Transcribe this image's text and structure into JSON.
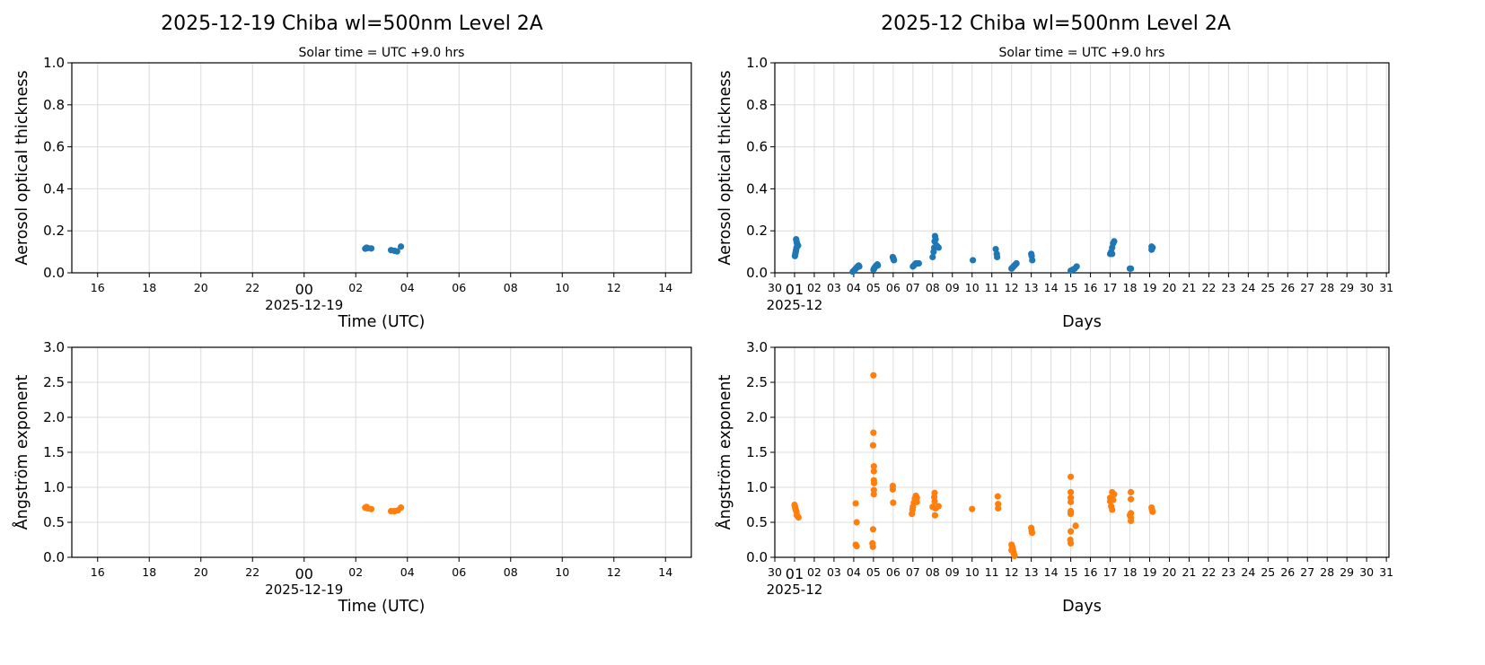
{
  "columns": [
    {
      "title": "2025-12-19  Chiba  wl=500nm  Level 2A",
      "subtitle": "Solar time = UTC +9.0 hrs"
    },
    {
      "title": "2025-12  Chiba  wl=500nm  Level 2A",
      "subtitle": "Solar time = UTC +9.0 hrs"
    }
  ],
  "chart_data": [
    {
      "type": "scatter",
      "panel": "daily-aot",
      "xlabel": "Time (UTC)",
      "ylabel": "Aerosol optical thickness",
      "xlim": [
        "2025-12-18 15:00",
        "2025-12-19 15:00"
      ],
      "ylim": [
        0,
        1
      ],
      "yticks": [
        "0.0",
        "0.2",
        "0.4",
        "0.6",
        "0.8",
        "1.0"
      ],
      "xticks": [
        {
          "at": "2025-12-18 16:00",
          "label": "16"
        },
        {
          "at": "2025-12-18 18:00",
          "label": "18"
        },
        {
          "at": "2025-12-18 20:00",
          "label": "20"
        },
        {
          "at": "2025-12-18 22:00",
          "label": "22"
        },
        {
          "at": "2025-12-19 00:00",
          "label": "00"
        },
        {
          "at": "2025-12-19 02:00",
          "label": "02"
        },
        {
          "at": "2025-12-19 04:00",
          "label": "04"
        },
        {
          "at": "2025-12-19 06:00",
          "label": "06"
        },
        {
          "at": "2025-12-19 08:00",
          "label": "08"
        },
        {
          "at": "2025-12-19 10:00",
          "label": "10"
        },
        {
          "at": "2025-12-19 12:00",
          "label": "12"
        },
        {
          "at": "2025-12-19 14:00",
          "label": "14"
        }
      ],
      "x_offset_label": "2025-12-19",
      "x_offset_at": "2025-12-19 00:00",
      "grid": true,
      "color": "#1f77b4",
      "points": [
        [
          "2025-12-19 02:22",
          0.115
        ],
        [
          "2025-12-19 02:25",
          0.12
        ],
        [
          "2025-12-19 02:28",
          0.118
        ],
        [
          "2025-12-19 02:36",
          0.116
        ],
        [
          "2025-12-19 03:22",
          0.108
        ],
        [
          "2025-12-19 03:30",
          0.105
        ],
        [
          "2025-12-19 03:36",
          0.102
        ],
        [
          "2025-12-19 03:45",
          0.125
        ]
      ]
    },
    {
      "type": "scatter",
      "panel": "monthly-aot",
      "xlabel": "Days",
      "ylabel": "Aerosol optical thickness",
      "xlim": [
        0,
        31.13
      ],
      "ylim": [
        0,
        1
      ],
      "yticks": [
        "0.0",
        "0.2",
        "0.4",
        "0.6",
        "0.8",
        "1.0"
      ],
      "xticks": [
        {
          "at": 0,
          "label": "30"
        },
        {
          "at": 1,
          "label": "01"
        },
        {
          "at": 2,
          "label": "02"
        },
        {
          "at": 3,
          "label": "03"
        },
        {
          "at": 4,
          "label": "04"
        },
        {
          "at": 5,
          "label": "05"
        },
        {
          "at": 6,
          "label": "06"
        },
        {
          "at": 7,
          "label": "07"
        },
        {
          "at": 8,
          "label": "08"
        },
        {
          "at": 9,
          "label": "09"
        },
        {
          "at": 10,
          "label": "10"
        },
        {
          "at": 11,
          "label": "11"
        },
        {
          "at": 12,
          "label": "12"
        },
        {
          "at": 13,
          "label": "13"
        },
        {
          "at": 14,
          "label": "14"
        },
        {
          "at": 15,
          "label": "15"
        },
        {
          "at": 16,
          "label": "16"
        },
        {
          "at": 17,
          "label": "17"
        },
        {
          "at": 18,
          "label": "18"
        },
        {
          "at": 19,
          "label": "19"
        },
        {
          "at": 20,
          "label": "20"
        },
        {
          "at": 21,
          "label": "21"
        },
        {
          "at": 22,
          "label": "22"
        },
        {
          "at": 23,
          "label": "23"
        },
        {
          "at": 24,
          "label": "24"
        },
        {
          "at": 25,
          "label": "25"
        },
        {
          "at": 26,
          "label": "26"
        },
        {
          "at": 27,
          "label": "27"
        },
        {
          "at": 28,
          "label": "28"
        },
        {
          "at": 29,
          "label": "29"
        },
        {
          "at": 30,
          "label": "30"
        },
        {
          "at": 31,
          "label": "31"
        }
      ],
      "x_offset_label": "2025-12",
      "x_offset_at": 1,
      "grid": true,
      "color": "#1f77b4",
      "points": [
        [
          1.02,
          0.08
        ],
        [
          1.04,
          0.09
        ],
        [
          1.06,
          0.1
        ],
        [
          1.08,
          0.11
        ],
        [
          1.1,
          0.12
        ],
        [
          1.12,
          0.14
        ],
        [
          1.08,
          0.16
        ],
        [
          1.1,
          0.15
        ],
        [
          1.18,
          0.13
        ],
        [
          1.15,
          0.13
        ],
        [
          3.95,
          0.005
        ],
        [
          4.0,
          0.01
        ],
        [
          4.05,
          0.015
        ],
        [
          4.1,
          0.02
        ],
        [
          4.15,
          0.025
        ],
        [
          4.2,
          0.03
        ],
        [
          4.25,
          0.035
        ],
        [
          4.28,
          0.03
        ],
        [
          5.0,
          0.015
        ],
        [
          5.03,
          0.02
        ],
        [
          5.06,
          0.025
        ],
        [
          5.1,
          0.03
        ],
        [
          5.15,
          0.035
        ],
        [
          5.2,
          0.04
        ],
        [
          5.22,
          0.035
        ],
        [
          5.98,
          0.075
        ],
        [
          6.0,
          0.07
        ],
        [
          6.02,
          0.065
        ],
        [
          6.04,
          0.06
        ],
        [
          7.0,
          0.03
        ],
        [
          7.05,
          0.035
        ],
        [
          7.1,
          0.04
        ],
        [
          7.15,
          0.045
        ],
        [
          7.2,
          0.045
        ],
        [
          7.3,
          0.045
        ],
        [
          8.0,
          0.075
        ],
        [
          8.05,
          0.1
        ],
        [
          8.08,
          0.12
        ],
        [
          8.1,
          0.15
        ],
        [
          8.12,
          0.175
        ],
        [
          8.15,
          0.16
        ],
        [
          8.2,
          0.13
        ],
        [
          8.3,
          0.12
        ],
        [
          8.25,
          0.125
        ],
        [
          10.04,
          0.06
        ],
        [
          11.2,
          0.113
        ],
        [
          11.25,
          0.09
        ],
        [
          11.27,
          0.075
        ],
        [
          12.0,
          0.02
        ],
        [
          12.05,
          0.025
        ],
        [
          12.1,
          0.03
        ],
        [
          12.15,
          0.035
        ],
        [
          12.2,
          0.04
        ],
        [
          12.25,
          0.045
        ],
        [
          13.0,
          0.09
        ],
        [
          13.02,
          0.08
        ],
        [
          13.05,
          0.06
        ],
        [
          15.0,
          0.01
        ],
        [
          15.1,
          0.015
        ],
        [
          15.2,
          0.02
        ],
        [
          15.3,
          0.03
        ],
        [
          17.0,
          0.09
        ],
        [
          17.05,
          0.1
        ],
        [
          17.1,
          0.12
        ],
        [
          17.15,
          0.14
        ],
        [
          17.2,
          0.15
        ],
        [
          17.1,
          0.09
        ],
        [
          18.0,
          0.02
        ],
        [
          18.05,
          0.02
        ],
        [
          19.1,
          0.125
        ],
        [
          19.1,
          0.11
        ],
        [
          19.15,
          0.12
        ]
      ]
    },
    {
      "type": "scatter",
      "panel": "daily-angstrom",
      "xlabel": "Time (UTC)",
      "ylabel": "Ångström exponent",
      "xlim": [
        "2025-12-18 15:00",
        "2025-12-19 15:00"
      ],
      "ylim": [
        0,
        3
      ],
      "yticks": [
        "0.0",
        "0.5",
        "1.0",
        "1.5",
        "2.0",
        "2.5",
        "3.0"
      ],
      "xticks": [
        {
          "at": "2025-12-18 16:00",
          "label": "16"
        },
        {
          "at": "2025-12-18 18:00",
          "label": "18"
        },
        {
          "at": "2025-12-18 20:00",
          "label": "20"
        },
        {
          "at": "2025-12-18 22:00",
          "label": "22"
        },
        {
          "at": "2025-12-19 00:00",
          "label": "00"
        },
        {
          "at": "2025-12-19 02:00",
          "label": "02"
        },
        {
          "at": "2025-12-19 04:00",
          "label": "04"
        },
        {
          "at": "2025-12-19 06:00",
          "label": "06"
        },
        {
          "at": "2025-12-19 08:00",
          "label": "08"
        },
        {
          "at": "2025-12-19 10:00",
          "label": "10"
        },
        {
          "at": "2025-12-19 12:00",
          "label": "12"
        },
        {
          "at": "2025-12-19 14:00",
          "label": "14"
        }
      ],
      "x_offset_label": "2025-12-19",
      "x_offset_at": "2025-12-19 00:00",
      "grid": true,
      "color": "#ff7f0e",
      "points": [
        [
          "2025-12-19 02:22",
          0.71
        ],
        [
          "2025-12-19 02:25",
          0.72
        ],
        [
          "2025-12-19 02:28",
          0.7
        ],
        [
          "2025-12-19 02:36",
          0.69
        ],
        [
          "2025-12-19 03:22",
          0.66
        ],
        [
          "2025-12-19 03:30",
          0.66
        ],
        [
          "2025-12-19 03:38",
          0.67
        ],
        [
          "2025-12-19 03:45",
          0.71
        ]
      ]
    },
    {
      "type": "scatter",
      "panel": "monthly-angstrom",
      "xlabel": "Days",
      "ylabel": "Ångström exponent",
      "xlim": [
        0,
        31.13
      ],
      "ylim": [
        0,
        3
      ],
      "yticks": [
        "0.0",
        "0.5",
        "1.0",
        "1.5",
        "2.0",
        "2.5",
        "3.0"
      ],
      "xticks": [
        {
          "at": 0,
          "label": "30"
        },
        {
          "at": 1,
          "label": "01"
        },
        {
          "at": 2,
          "label": "02"
        },
        {
          "at": 3,
          "label": "03"
        },
        {
          "at": 4,
          "label": "04"
        },
        {
          "at": 5,
          "label": "05"
        },
        {
          "at": 6,
          "label": "06"
        },
        {
          "at": 7,
          "label": "07"
        },
        {
          "at": 8,
          "label": "08"
        },
        {
          "at": 9,
          "label": "09"
        },
        {
          "at": 10,
          "label": "10"
        },
        {
          "at": 11,
          "label": "11"
        },
        {
          "at": 12,
          "label": "12"
        },
        {
          "at": 13,
          "label": "13"
        },
        {
          "at": 14,
          "label": "14"
        },
        {
          "at": 15,
          "label": "15"
        },
        {
          "at": 16,
          "label": "16"
        },
        {
          "at": 17,
          "label": "17"
        },
        {
          "at": 18,
          "label": "18"
        },
        {
          "at": 19,
          "label": "19"
        },
        {
          "at": 20,
          "label": "20"
        },
        {
          "at": 21,
          "label": "21"
        },
        {
          "at": 22,
          "label": "22"
        },
        {
          "at": 23,
          "label": "23"
        },
        {
          "at": 24,
          "label": "24"
        },
        {
          "at": 25,
          "label": "25"
        },
        {
          "at": 26,
          "label": "26"
        },
        {
          "at": 27,
          "label": "27"
        },
        {
          "at": 28,
          "label": "28"
        },
        {
          "at": 29,
          "label": "29"
        },
        {
          "at": 30,
          "label": "30"
        },
        {
          "at": 31,
          "label": "31"
        }
      ],
      "x_offset_label": "2025-12",
      "x_offset_at": 1,
      "grid": true,
      "color": "#ff7f0e",
      "points": [
        [
          1.0,
          0.75
        ],
        [
          1.02,
          0.73
        ],
        [
          1.04,
          0.7
        ],
        [
          1.06,
          0.68
        ],
        [
          1.1,
          0.65
        ],
        [
          1.12,
          0.6
        ],
        [
          1.2,
          0.57
        ],
        [
          4.1,
          0.77
        ],
        [
          4.15,
          0.5
        ],
        [
          4.1,
          0.18
        ],
        [
          4.15,
          0.16
        ],
        [
          5.0,
          2.6
        ],
        [
          5.0,
          1.78
        ],
        [
          4.98,
          1.6
        ],
        [
          5.02,
          1.3
        ],
        [
          5.02,
          1.23
        ],
        [
          5.02,
          1.1
        ],
        [
          5.03,
          1.06
        ],
        [
          5.02,
          0.96
        ],
        [
          5.02,
          0.9
        ],
        [
          4.98,
          0.4
        ],
        [
          4.95,
          0.2
        ],
        [
          4.97,
          0.15
        ],
        [
          5.98,
          1.02
        ],
        [
          5.98,
          0.97
        ],
        [
          6.0,
          0.78
        ],
        [
          6.95,
          0.62
        ],
        [
          6.98,
          0.68
        ],
        [
          7.0,
          0.72
        ],
        [
          7.05,
          0.78
        ],
        [
          7.1,
          0.84
        ],
        [
          7.15,
          0.88
        ],
        [
          7.2,
          0.85
        ],
        [
          7.2,
          0.79
        ],
        [
          8.1,
          0.92
        ],
        [
          8.08,
          0.86
        ],
        [
          8.1,
          0.8
        ],
        [
          8.0,
          0.72
        ],
        [
          8.15,
          0.7
        ],
        [
          8.12,
          0.6
        ],
        [
          8.3,
          0.73
        ],
        [
          10.0,
          0.69
        ],
        [
          11.3,
          0.87
        ],
        [
          11.32,
          0.76
        ],
        [
          11.32,
          0.7
        ],
        [
          12.0,
          0.18
        ],
        [
          12.03,
          0.15
        ],
        [
          12.06,
          0.12
        ],
        [
          12.1,
          0.08
        ],
        [
          12.12,
          0.05
        ],
        [
          12.15,
          0.02
        ],
        [
          12.0,
          0.1
        ],
        [
          13.0,
          0.42
        ],
        [
          13.02,
          0.38
        ],
        [
          13.04,
          0.35
        ],
        [
          15.0,
          1.15
        ],
        [
          15.0,
          0.93
        ],
        [
          15.0,
          0.85
        ],
        [
          15.0,
          0.79
        ],
        [
          15.0,
          0.66
        ],
        [
          15.0,
          0.62
        ],
        [
          15.0,
          0.37
        ],
        [
          14.98,
          0.25
        ],
        [
          15.0,
          0.2
        ],
        [
          15.25,
          0.45
        ],
        [
          17.0,
          0.85
        ],
        [
          17.0,
          0.8
        ],
        [
          17.05,
          0.73
        ],
        [
          17.1,
          0.68
        ],
        [
          17.1,
          0.93
        ],
        [
          17.2,
          0.9
        ],
        [
          17.15,
          0.82
        ],
        [
          18.05,
          0.93
        ],
        [
          18.05,
          0.83
        ],
        [
          18.05,
          0.63
        ],
        [
          18.05,
          0.57
        ],
        [
          18.05,
          0.52
        ],
        [
          18.0,
          0.6
        ],
        [
          19.1,
          0.71
        ],
        [
          19.12,
          0.68
        ],
        [
          19.15,
          0.65
        ]
      ]
    }
  ]
}
